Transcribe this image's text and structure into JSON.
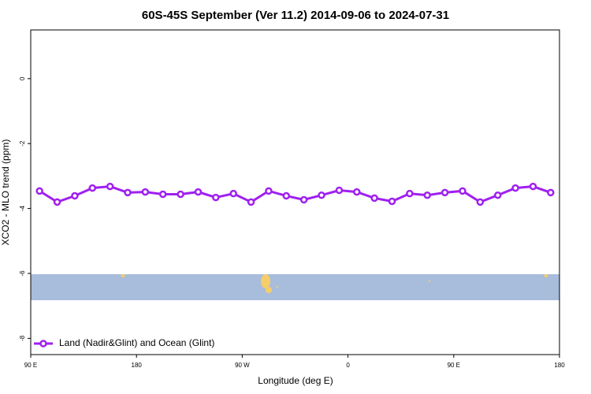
{
  "chart_data": {
    "type": "line",
    "title": "60S-45S September (Ver 11.2)   2014-09-06 to 2024-07-31",
    "xlabel": "Longitude (deg E)",
    "ylabel": "XCO2 - MLO trend (ppm)",
    "x": [
      97.5,
      112.5,
      127.5,
      142.5,
      157.5,
      172.5,
      187.5,
      202.5,
      217.5,
      232.5,
      247.5,
      262.5,
      277.5,
      292.5,
      307.5,
      322.5,
      337.5,
      352.5,
      367.5,
      382.5,
      397.5,
      412.5,
      427.5,
      442.5,
      457.5,
      472.5,
      487.5,
      502.5,
      517.5,
      532.5
    ],
    "series": [
      {
        "name": "Land (Nadir&Glint) and Ocean (Glint)",
        "color": "#a020f0",
        "values": [
          -3.46,
          -3.8,
          -3.61,
          -3.37,
          -3.32,
          -3.51,
          -3.49,
          -3.56,
          -3.56,
          -3.49,
          -3.66,
          -3.54,
          -3.8,
          -3.46,
          -3.61,
          -3.73,
          -3.59,
          -3.44,
          -3.49,
          -3.68,
          -3.78,
          -3.54,
          -3.59,
          -3.51,
          -3.46,
          -3.8,
          -3.59,
          -3.37,
          -3.32,
          -3.51
        ]
      }
    ],
    "xlim": [
      90,
      540
    ],
    "xticks": [
      {
        "value": 90,
        "label": "90 E"
      },
      {
        "value": 180,
        "label": "180"
      },
      {
        "value": 270,
        "label": "90 W"
      },
      {
        "value": 360,
        "label": "0"
      },
      {
        "value": 450,
        "label": "90 E"
      },
      {
        "value": 540,
        "label": "180"
      }
    ],
    "ylim": [
      -8.5,
      1.5
    ],
    "yticks": [
      0,
      -2,
      -4,
      -6,
      -8
    ],
    "legend": "bottom-left"
  }
}
